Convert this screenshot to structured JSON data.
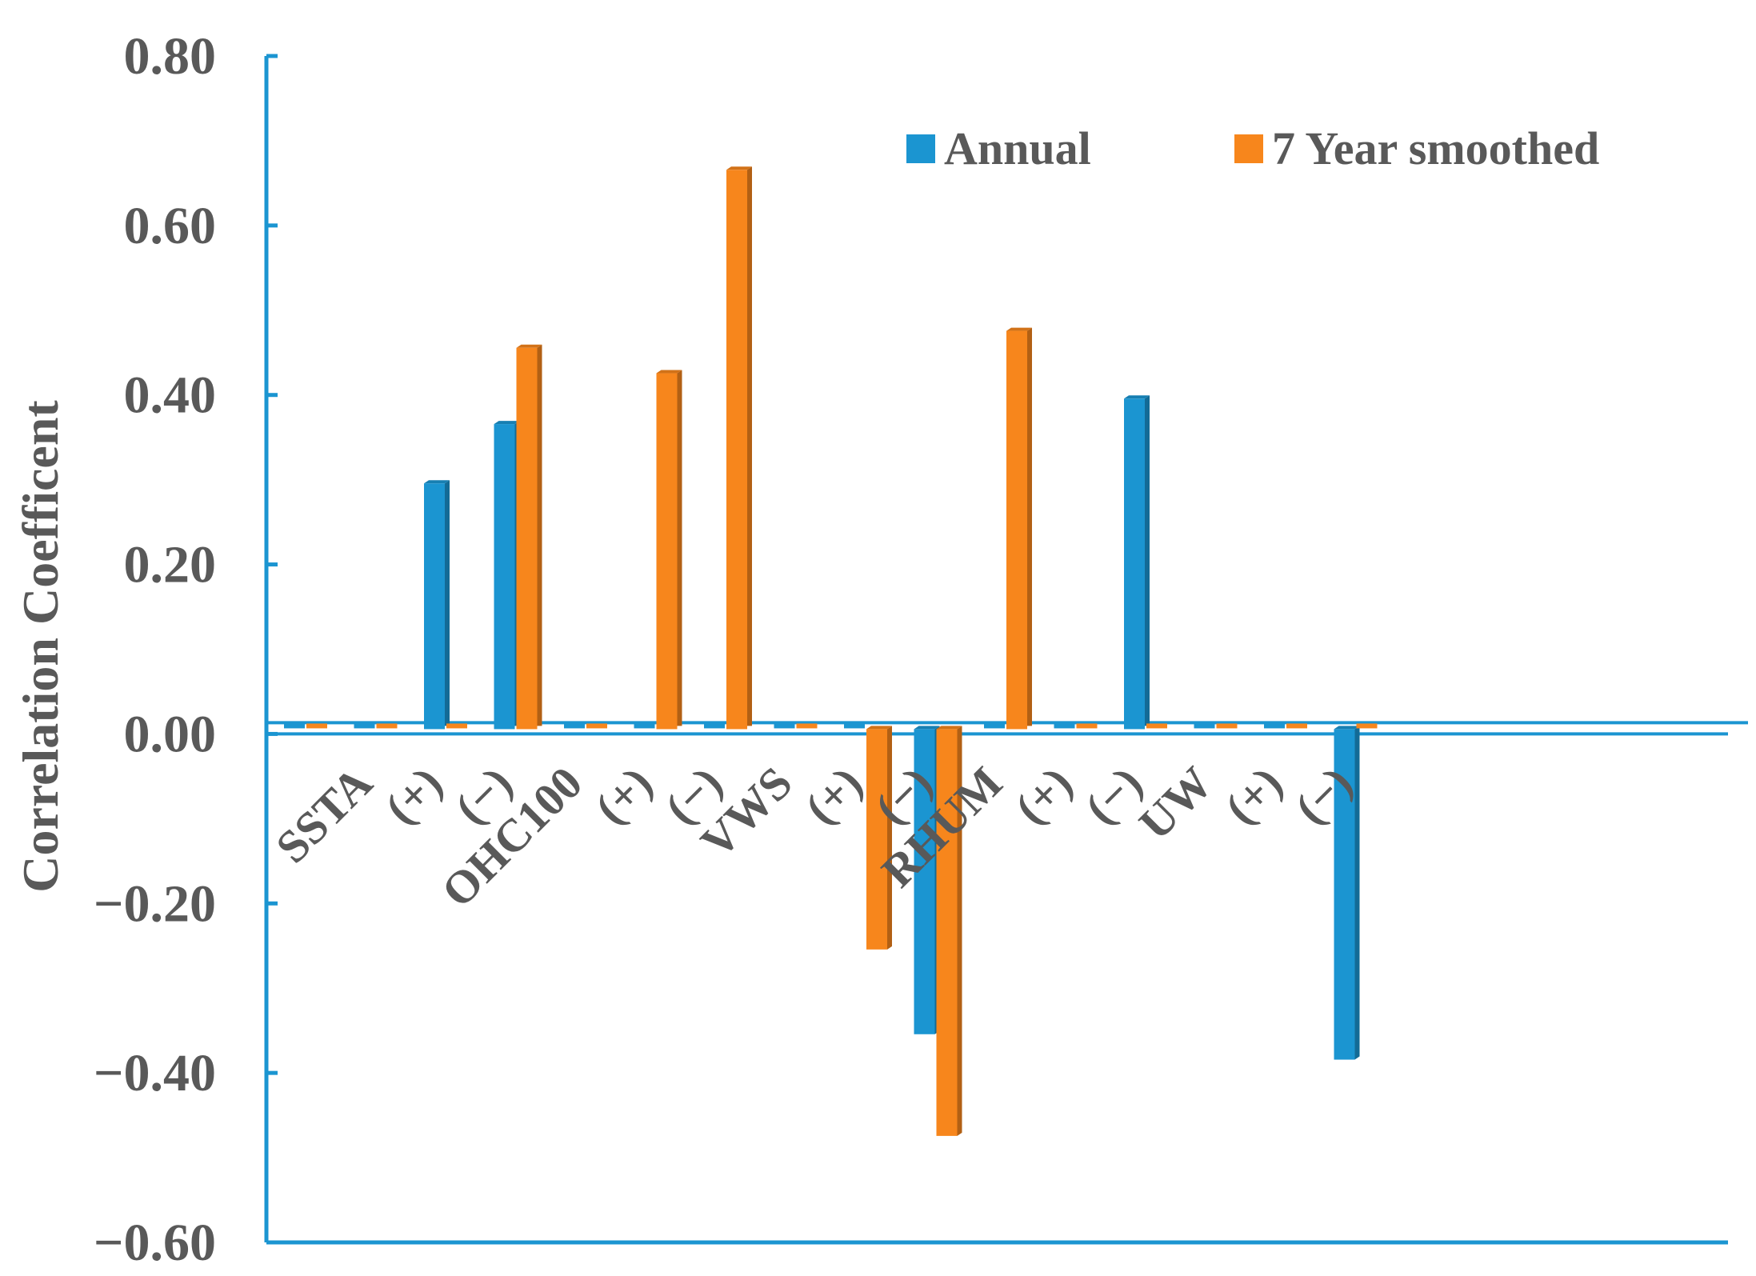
{
  "chart_data": {
    "type": "bar",
    "ylabel": "Correlation Coefficent",
    "ylim": [
      -0.6,
      0.8
    ],
    "ytick_values": [
      0.8,
      0.6,
      0.4,
      0.2,
      0.0,
      -0.2,
      -0.4,
      -0.6
    ],
    "ytick_labels": [
      "0.80",
      "0.60",
      "0.40",
      "0.20",
      "0.00",
      "−0.20",
      "−0.40",
      "−0.60"
    ],
    "categories": [
      "",
      "SSTA",
      "(+)",
      "(−)",
      "OHC100",
      "(+)",
      "(−)",
      "VWS",
      "(+)",
      "(−)",
      "RHUM",
      "(+)",
      "(−)",
      "UW",
      "(+)",
      "(−)"
    ],
    "series": [
      {
        "name": "Annual",
        "color": "#1b95d1",
        "values": [
          0,
          0,
          0.29,
          0.36,
          0,
          0,
          0,
          0,
          0,
          -0.36,
          0,
          0,
          0.39,
          0,
          0,
          -0.39
        ]
      },
      {
        "name": "7 Year smoothed",
        "color": "#f7861c",
        "values": [
          0,
          0,
          0,
          0.45,
          0,
          0.42,
          0.66,
          0,
          -0.26,
          -0.48,
          0.47,
          0,
          0,
          0,
          0,
          0
        ]
      }
    ],
    "legend": {
      "position": "top-right",
      "entries": [
        "Annual",
        "7 Year smoothed"
      ]
    },
    "axis_color": "#1b95d1"
  }
}
